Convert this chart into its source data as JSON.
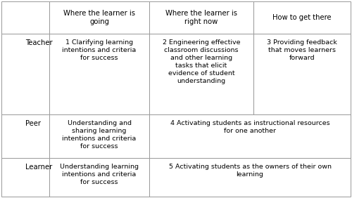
{
  "background_color": "#ffffff",
  "border_color": "#999999",
  "text_color": "#000000",
  "font_size": 6.8,
  "header_font_size": 7.2,
  "row_label_font_size": 7.2,
  "fig_width": 5.0,
  "fig_height": 2.82,
  "header_row": [
    "",
    "Where the learner is\ngoing",
    "Where the learner is\nright now",
    "How to get there"
  ],
  "row_labels": [
    "Teacher",
    "Peer",
    "Learner"
  ],
  "cells": {
    "teacher_col1": "1 Clarifying learning\nintentions and criteria\nfor success",
    "teacher_col2": "2 Engineering effective\nclassroom discussions\nand other learning\ntasks that elicit\nevidence of student\nunderstanding",
    "teacher_col3": "3 Providing feedback\nthat moves learners\nforward",
    "peer_col1": "Understanding and\nsharing learning\nintentions and criteria\nfor success",
    "peer_col23": "4 Activating students as instructional resources\nfor one another",
    "learner_col1": "Understanding learning\nintentions and criteria\nfor success",
    "learner_col23": "5 Activating students as the owners of their own\nlearning"
  }
}
